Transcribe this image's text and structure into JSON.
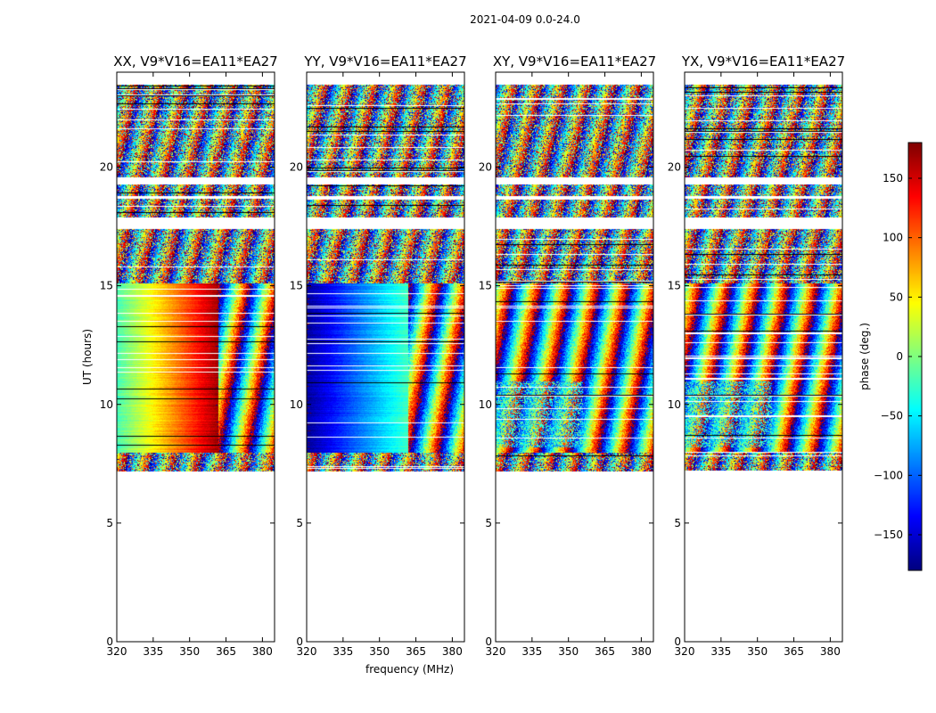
{
  "suptitle": "2021-04-09 0.0-24.0",
  "colors": {
    "background": "#ffffff",
    "axes": "#000000",
    "colormap": "jet"
  },
  "chart_data": [
    {
      "type": "heatmap",
      "title": "XX, V9*V16=EA11*EA27",
      "xlabel": "",
      "ylabel": "UT (hours)",
      "xlim": [
        320,
        385
      ],
      "ylim": [
        0,
        24
      ],
      "xticks": [
        320,
        335,
        350,
        365,
        380
      ],
      "yticks": [
        0,
        5,
        10,
        15,
        20
      ],
      "yticklabels_shown": true,
      "pattern": "smooth phase gradient left-to-right (green/yellow to red/dark red) 8-15 h below ~360 MHz, noisy above; random phase 7.2-8 h and 15-23.5 h",
      "phase_gradient": [
        -20,
        170
      ]
    },
    {
      "type": "heatmap",
      "title": "YY, V9*V16=EA11*EA27",
      "xlabel": "frequency (MHz)",
      "ylabel": "",
      "xlim": [
        320,
        385
      ],
      "ylim": [
        0,
        24
      ],
      "xticks": [
        320,
        335,
        350,
        365,
        380
      ],
      "yticks": [
        0,
        5,
        10,
        15,
        20
      ],
      "yticklabels_shown": true,
      "pattern": "smooth phase gradient left-to-right (dark blue to cyan/green) 8-15 h below ~360 MHz, noisy above; random phase 7.2-8 h and 15-23.5 h",
      "phase_gradient": [
        -170,
        -20
      ]
    },
    {
      "type": "heatmap",
      "title": "XY, V9*V16=EA11*EA27",
      "xlabel": "",
      "ylabel": "",
      "xlim": [
        320,
        385
      ],
      "ylim": [
        0,
        24
      ],
      "xticks": [
        320,
        335,
        350,
        365,
        380
      ],
      "yticks": [
        0,
        5,
        10,
        15,
        20
      ],
      "yticklabels_shown": true,
      "pattern": "mostly noisy phase 7.2-23.5 h, blue/cyan tendency 8-11 h at low frequency",
      "phase_gradient": [
        -120,
        20
      ]
    },
    {
      "type": "heatmap",
      "title": "YX, V9*V16=EA11*EA27",
      "xlabel": "",
      "ylabel": "",
      "xlim": [
        320,
        385
      ],
      "ylim": [
        0,
        24
      ],
      "xticks": [
        320,
        335,
        350,
        365,
        380
      ],
      "yticks": [
        0,
        5,
        10,
        15,
        20
      ],
      "yticklabels_shown": true,
      "pattern": "mostly noisy phase 7.2-23.5 h, blue/cyan tendency 8-11 h at low frequency",
      "phase_gradient": [
        -120,
        20
      ]
    }
  ],
  "colorbar": {
    "label": "phase (deg.)",
    "range": [
      -180,
      180
    ],
    "ticks": [
      150,
      100,
      50,
      0,
      -50,
      -100,
      -150
    ],
    "ticklabels": [
      "150",
      "100",
      "50",
      "0",
      "−50",
      "−100",
      "−150"
    ]
  }
}
